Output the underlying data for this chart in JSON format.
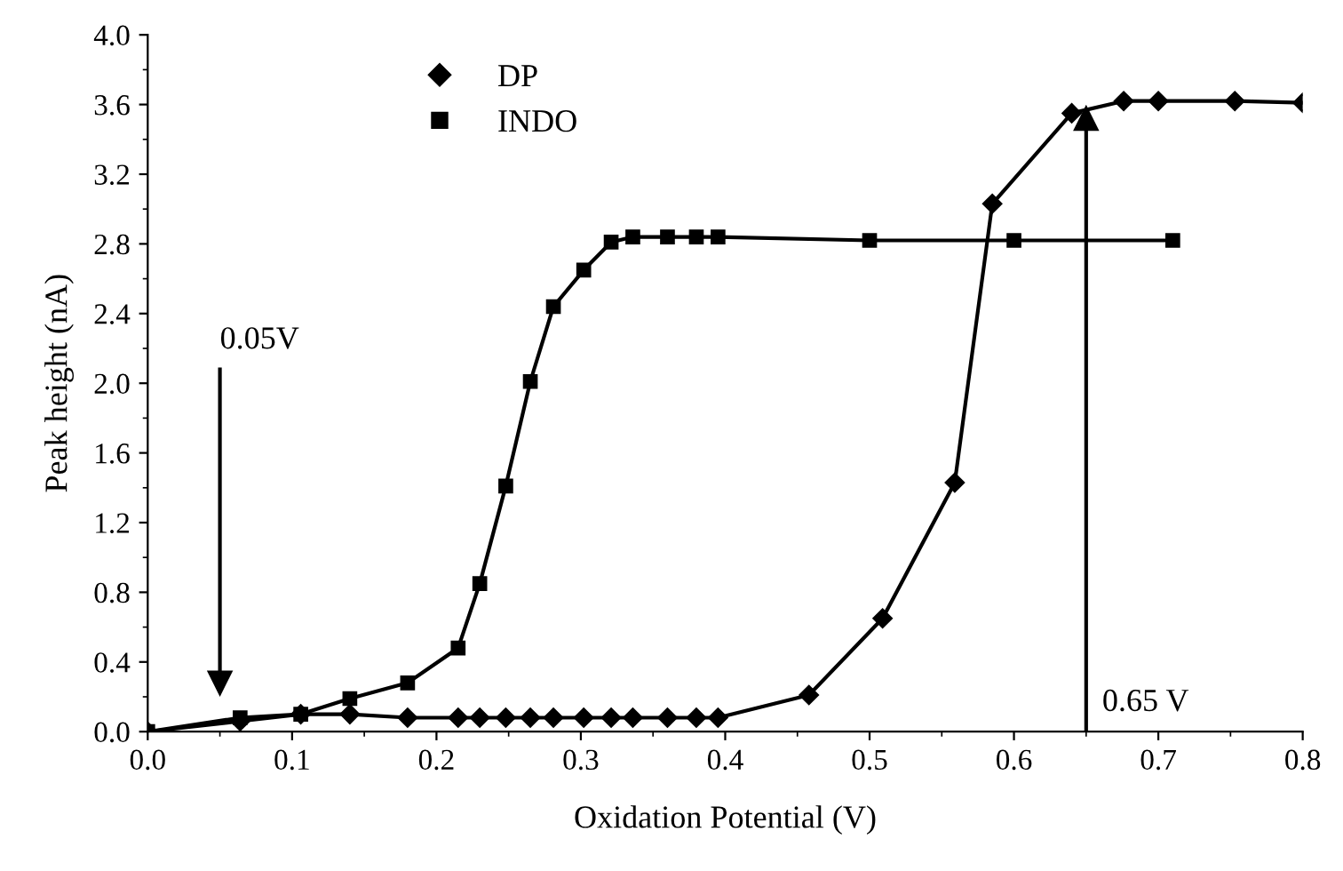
{
  "chart_data": {
    "type": "line",
    "xlabel": "Oxidation Potential (V)",
    "ylabel": "Peak height (nA)",
    "xlim": [
      0,
      0.8
    ],
    "ylim": [
      0,
      4.0
    ],
    "xticks": [
      {
        "value": 0,
        "label": "0.0"
      },
      0.1,
      0.2,
      0.3,
      0.4,
      0.5,
      0.6,
      0.7,
      0.8
    ],
    "yticks": [
      {
        "value": 0,
        "label": "0.0"
      },
      0.4,
      0.8,
      1.2,
      1.6,
      {
        "value": 2,
        "label": "2.0"
      },
      2.4,
      2.8,
      3.2,
      3.6,
      {
        "value": 4,
        "label": "4.0"
      }
    ],
    "grid": false,
    "legend": "top left",
    "line_style": "solid",
    "series": [
      {
        "name": "DP",
        "color": "#000000",
        "marker": "diamond",
        "x": [
          0,
          0.064,
          0.106,
          0.14,
          0.18,
          0.215,
          0.23,
          0.248,
          0.265,
          0.281,
          0.302,
          0.321,
          0.336,
          0.36,
          0.38,
          0.395,
          0.458,
          0.509,
          0.559,
          0.585,
          0.64,
          0.676,
          0.7,
          0.753,
          0.8
        ],
        "values": [
          0,
          0.06,
          0.1,
          0.1,
          0.08,
          0.08,
          0.08,
          0.08,
          0.08,
          0.08,
          0.08,
          0.08,
          0.08,
          0.08,
          0.08,
          0.08,
          0.21,
          0.65,
          1.43,
          3.03,
          3.55,
          3.62,
          3.62,
          3.62,
          3.61
        ]
      },
      {
        "name": "INDO",
        "color": "#000000",
        "marker": "square",
        "x": [
          0,
          0.064,
          0.106,
          0.14,
          0.18,
          0.215,
          0.23,
          0.248,
          0.265,
          0.281,
          0.302,
          0.321,
          0.336,
          0.36,
          0.38,
          0.395,
          0.5,
          0.6,
          0.71
        ],
        "values": [
          0,
          0.08,
          0.1,
          0.19,
          0.28,
          0.48,
          0.85,
          1.41,
          2.01,
          2.44,
          2.65,
          2.81,
          2.84,
          2.84,
          2.84,
          2.84,
          2.82,
          2.82,
          2.82
        ]
      }
    ],
    "ref_lines": [
      {
        "axis": "x",
        "value": 0.05,
        "label": "0.05V",
        "line_style": "solid"
      },
      {
        "axis": "x",
        "value": 0.65,
        "label": "0.65 V",
        "line_style": "solid"
      }
    ]
  }
}
